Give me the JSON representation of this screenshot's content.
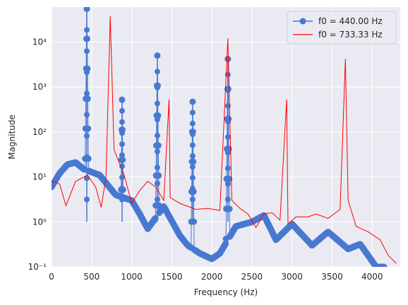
{
  "chart_data": {
    "type": "line",
    "title": "",
    "xlabel": "Frequency (Hz)",
    "ylabel": "Magnitude",
    "xlim": [
      0,
      4350
    ],
    "ylim": [
      0.1,
      60000
    ],
    "yscale": "log",
    "grid": true,
    "legend_position": "top-right",
    "x_ticks": [
      0,
      500,
      1000,
      1500,
      2000,
      2500,
      3000,
      3500,
      4000
    ],
    "y_ticks": [
      0.1,
      1,
      10,
      100,
      1000,
      10000
    ],
    "y_tick_labels": [
      "10⁻¹",
      "10⁰",
      "10¹",
      "10²",
      "10³",
      "10⁴"
    ],
    "series": [
      {
        "name": "f0 = 440.00 Hz",
        "color": "#4878d0",
        "marker": "circle",
        "peaks": [
          [
            440,
            55000
          ],
          [
            880,
            520
          ],
          [
            1320,
            5000
          ],
          [
            1760,
            470
          ],
          [
            2200,
            4200
          ]
        ],
        "lobe_envelope": [
          [
            0,
            6
          ],
          [
            100,
            12
          ],
          [
            200,
            19
          ],
          [
            300,
            21
          ],
          [
            400,
            15
          ],
          [
            600,
            11
          ],
          [
            800,
            4
          ],
          [
            1000,
            3
          ],
          [
            1100,
            1.5
          ],
          [
            1200,
            0.7
          ],
          [
            1400,
            2.2
          ],
          [
            1600,
            0.5
          ],
          [
            1700,
            0.3
          ],
          [
            1850,
            0.2
          ],
          [
            2000,
            0.15
          ],
          [
            2100,
            0.2
          ],
          [
            2300,
            0.8
          ],
          [
            2500,
            1.0
          ],
          [
            2650,
            1.4
          ],
          [
            2800,
            0.4
          ],
          [
            3000,
            0.9
          ],
          [
            3250,
            0.3
          ],
          [
            3450,
            0.6
          ],
          [
            3700,
            0.25
          ],
          [
            3850,
            0.32
          ],
          [
            4050,
            0.1
          ]
        ]
      },
      {
        "name": "f0 = 733.33 Hz",
        "color": "#ff0000",
        "marker": "none",
        "points": [
          [
            0,
            8
          ],
          [
            100,
            7
          ],
          [
            180,
            2.3
          ],
          [
            300,
            8
          ],
          [
            450,
            11
          ],
          [
            550,
            6
          ],
          [
            620,
            2.1
          ],
          [
            680,
            10
          ],
          [
            733,
            38000
          ],
          [
            780,
            40
          ],
          [
            900,
            12
          ],
          [
            1000,
            2.6
          ],
          [
            1100,
            5
          ],
          [
            1200,
            8
          ],
          [
            1300,
            6
          ],
          [
            1400,
            3
          ],
          [
            1466,
            530
          ],
          [
            1480,
            3.5
          ],
          [
            1600,
            2.6
          ],
          [
            1800,
            1.9
          ],
          [
            1950,
            2.0
          ],
          [
            2100,
            1.8
          ],
          [
            2200,
            12000
          ],
          [
            2250,
            3
          ],
          [
            2350,
            2.0
          ],
          [
            2450,
            1.5
          ],
          [
            2550,
            0.75
          ],
          [
            2650,
            1.5
          ],
          [
            2750,
            1.6
          ],
          [
            2850,
            1.1
          ],
          [
            2933,
            530
          ],
          [
            2950,
            0.9
          ],
          [
            3050,
            1.3
          ],
          [
            3200,
            1.3
          ],
          [
            3300,
            1.5
          ],
          [
            3450,
            1.2
          ],
          [
            3600,
            1.9
          ],
          [
            3666,
            4200
          ],
          [
            3700,
            3
          ],
          [
            3800,
            0.8
          ],
          [
            3950,
            0.6
          ],
          [
            4100,
            0.4
          ],
          [
            4200,
            0.18
          ],
          [
            4300,
            0.12
          ]
        ]
      }
    ]
  }
}
